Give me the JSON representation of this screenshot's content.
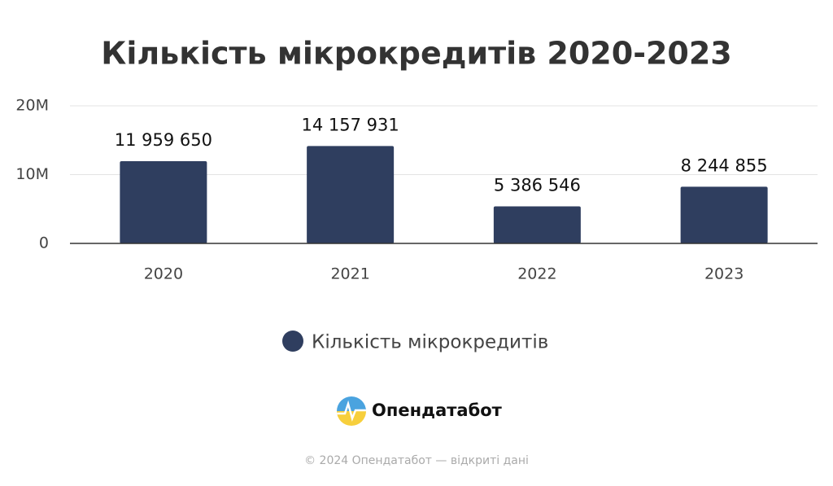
{
  "chart_data": {
    "type": "bar",
    "title": "Кількість мікрокредитів 2020-2023",
    "categories": [
      "2020",
      "2021",
      "2022",
      "2023"
    ],
    "series": [
      {
        "name": "Кількість мікрокредитів",
        "color": "#2f3e5f",
        "values": [
          11959650,
          14157931,
          5386546,
          8244855
        ],
        "value_labels": [
          "11 959 650",
          "14 157 931",
          "5 386 546",
          "8 244 855"
        ]
      }
    ],
    "ylim": [
      0,
      20000000
    ],
    "yticks": [
      0,
      {
        "value": 10000000,
        "label": "10M"
      },
      {
        "value": 20000000,
        "label": "20M"
      }
    ],
    "grid": true,
    "legend": "bottom"
  },
  "brand": "Опендатабот",
  "footer": "© 2024 Опендатабот — відкриті дані"
}
